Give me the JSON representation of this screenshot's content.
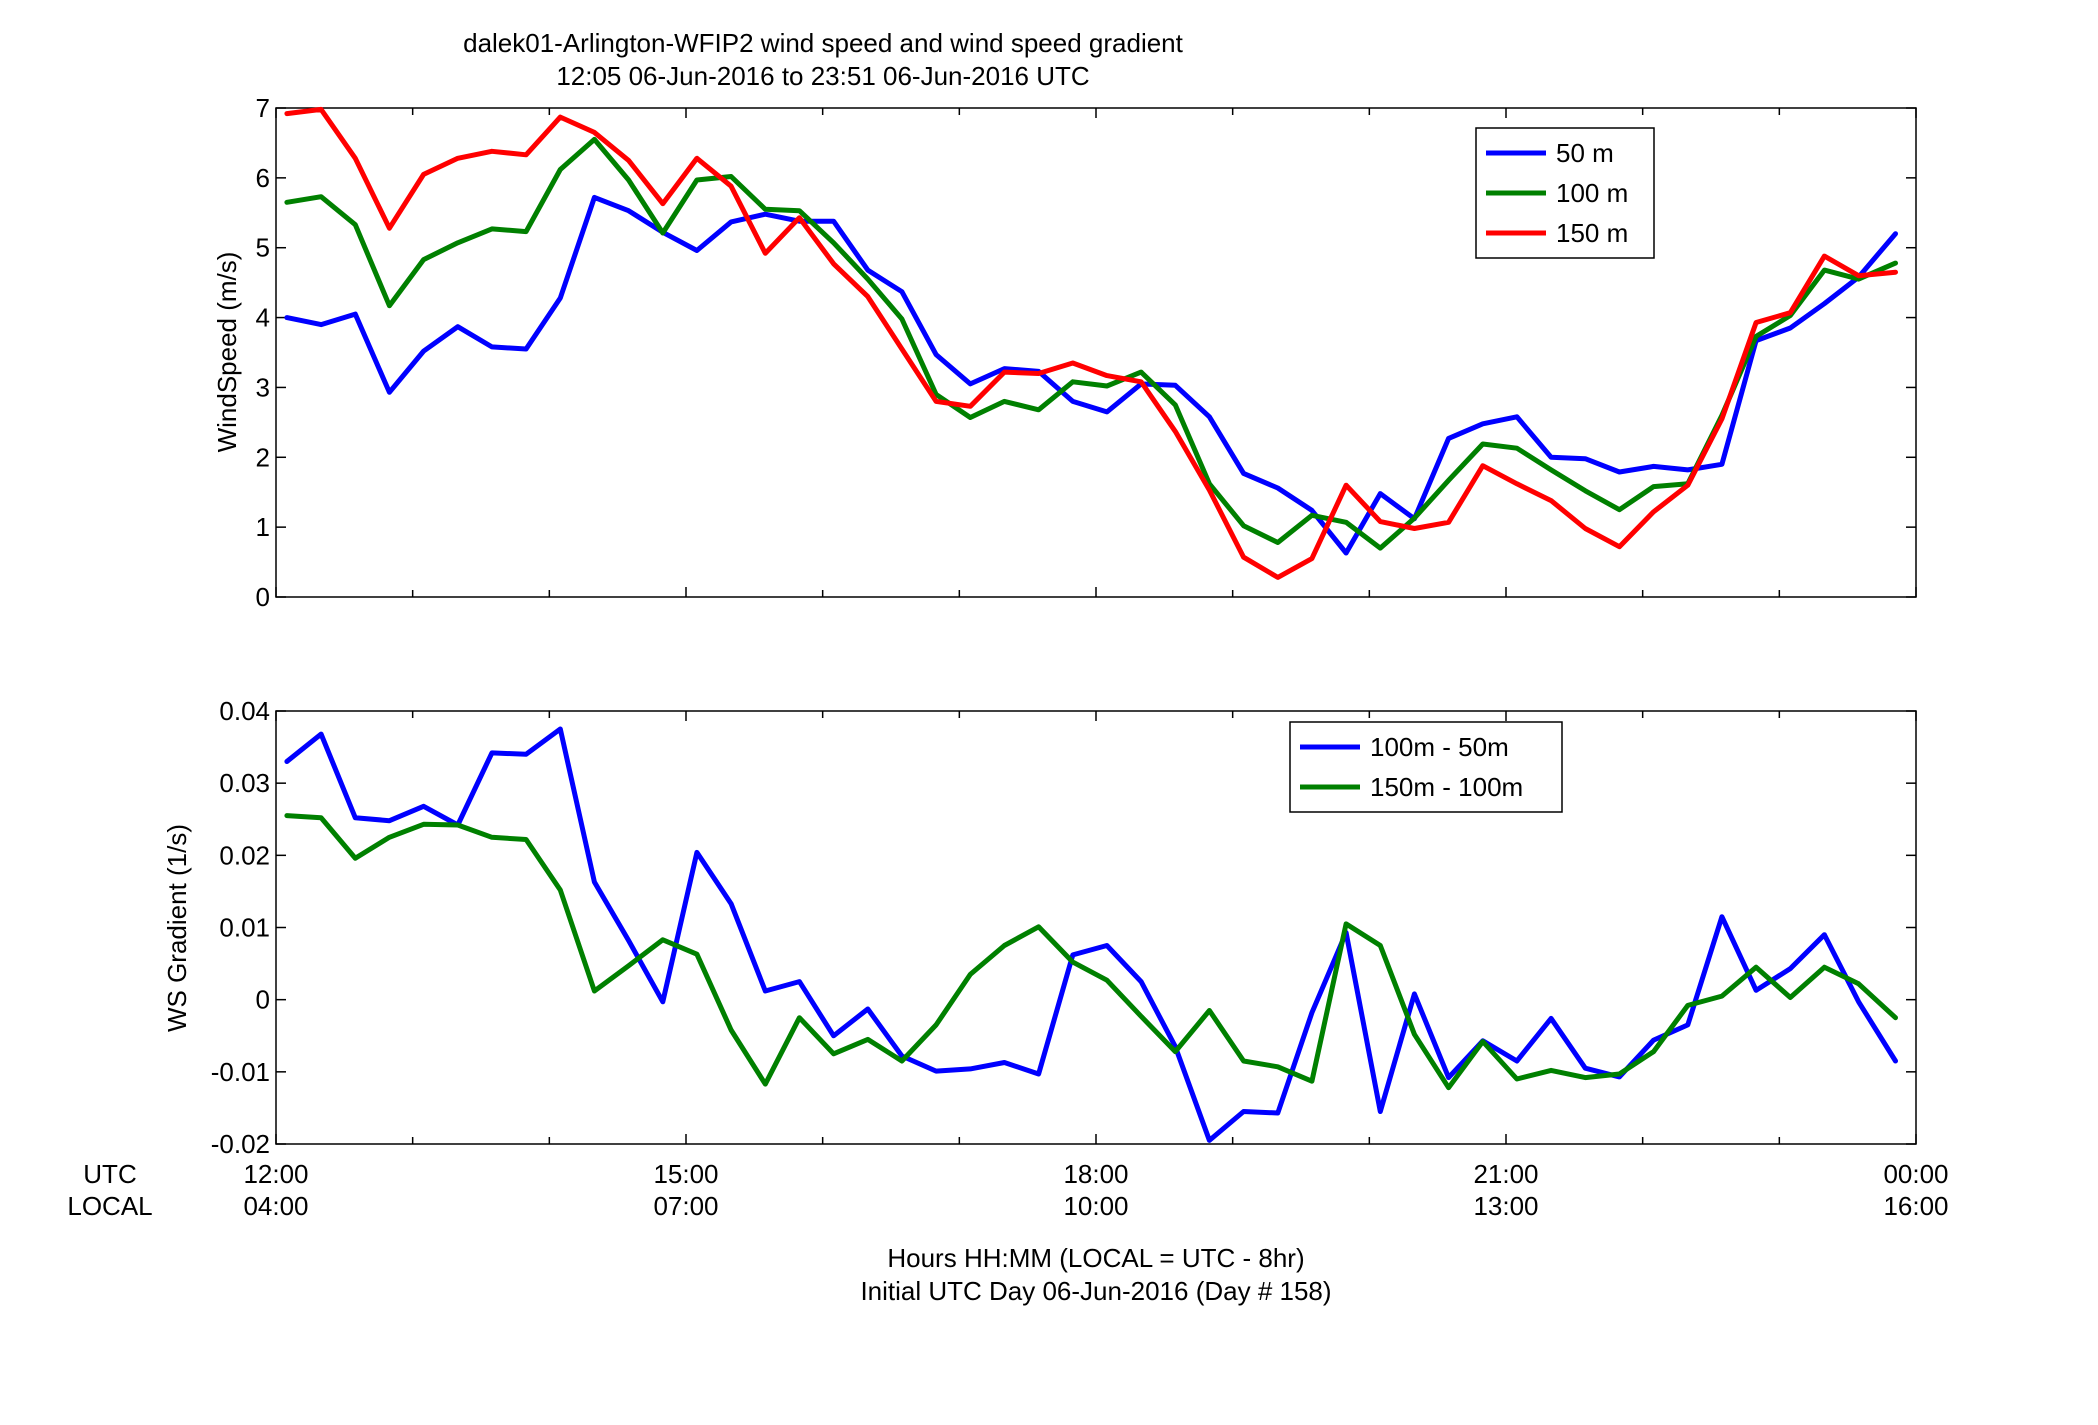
{
  "figure": {
    "title_line1": "dalek01-Arlington-WFIP2  wind speed and wind speed gradient",
    "title_line2": "12:05 06-Jun-2016 to 23:51 06-Jun-2016  UTC",
    "xlabel_line1": "Hours HH:MM  (LOCAL = UTC - 8hr)",
    "xlabel_line2": "Initial UTC Day 06-Jun-2016 (Day # 158)",
    "row_label_utc": "UTC",
    "row_label_local": "LOCAL",
    "x_ticks_utc": [
      "12:00",
      "15:00",
      "18:00",
      "21:00",
      "00:00"
    ],
    "x_ticks_local": [
      "04:00",
      "07:00",
      "10:00",
      "13:00",
      "16:00"
    ]
  },
  "chart_data": [
    {
      "type": "line",
      "ylabel": "WindSpeed (m/s)",
      "xlabel": "",
      "xlim": [
        12.0,
        24.0
      ],
      "ylim": [
        0,
        7
      ],
      "y_ticks": [
        0,
        1,
        2,
        3,
        4,
        5,
        6,
        7
      ],
      "grid": false,
      "legend_position": "top-right",
      "x": [
        12.08,
        12.33,
        12.58,
        12.83,
        13.08,
        13.33,
        13.58,
        13.83,
        14.08,
        14.33,
        14.58,
        14.83,
        15.08,
        15.33,
        15.58,
        15.83,
        16.08,
        16.33,
        16.58,
        16.83,
        17.08,
        17.33,
        17.58,
        17.83,
        18.08,
        18.33,
        18.58,
        18.83,
        19.08,
        19.33,
        19.58,
        19.83,
        20.08,
        20.33,
        20.58,
        20.83,
        21.08,
        21.33,
        21.58,
        21.83,
        22.08,
        22.33,
        22.58,
        22.83,
        23.08,
        23.33,
        23.58,
        23.85
      ],
      "series": [
        {
          "name": "50 m",
          "color": "#0000ff",
          "values": [
            4.0,
            3.9,
            4.05,
            2.93,
            3.52,
            3.87,
            3.58,
            3.55,
            4.28,
            5.72,
            5.53,
            5.22,
            4.96,
            5.37,
            5.48,
            5.38,
            5.38,
            4.68,
            4.37,
            3.47,
            3.05,
            3.27,
            3.23,
            2.8,
            2.65,
            3.05,
            3.03,
            2.58,
            1.77,
            1.56,
            1.24,
            0.63,
            1.48,
            1.12,
            2.27,
            2.48,
            2.58,
            2.0,
            1.98,
            1.79,
            1.87,
            1.82,
            1.9,
            3.67,
            3.85,
            4.2,
            4.58,
            5.2
          ]
        },
        {
          "name": "100 m",
          "color": "#008000",
          "values": [
            5.65,
            5.73,
            5.33,
            4.17,
            4.83,
            5.07,
            5.27,
            5.23,
            6.12,
            6.55,
            5.97,
            5.21,
            5.97,
            6.02,
            5.55,
            5.53,
            5.07,
            4.55,
            3.98,
            2.9,
            2.57,
            2.8,
            2.68,
            3.08,
            3.02,
            3.22,
            2.75,
            1.62,
            1.02,
            0.78,
            1.17,
            1.07,
            0.7,
            1.13,
            1.67,
            2.19,
            2.13,
            1.82,
            1.52,
            1.25,
            1.58,
            1.62,
            2.6,
            3.73,
            4.03,
            4.68,
            4.55,
            4.78
          ]
        },
        {
          "name": "150 m",
          "color": "#ff0000",
          "values": [
            6.92,
            6.98,
            6.28,
            5.28,
            6.05,
            6.28,
            6.38,
            6.33,
            6.87,
            6.65,
            6.25,
            5.63,
            6.28,
            5.88,
            4.92,
            5.43,
            4.77,
            4.3,
            3.55,
            2.8,
            2.73,
            3.22,
            3.2,
            3.35,
            3.17,
            3.08,
            2.37,
            1.53,
            0.57,
            0.28,
            0.55,
            1.6,
            1.08,
            0.98,
            1.07,
            1.88,
            1.62,
            1.38,
            0.98,
            0.72,
            1.22,
            1.6,
            2.55,
            3.93,
            4.07,
            4.88,
            4.6,
            4.65
          ]
        }
      ]
    },
    {
      "type": "line",
      "ylabel": "WS Gradient (1/s)",
      "xlabel": "",
      "xlim": [
        12.0,
        24.0
      ],
      "ylim": [
        -0.02,
        0.04
      ],
      "y_ticks": [
        -0.02,
        -0.01,
        0,
        0.01,
        0.02,
        0.03,
        0.04
      ],
      "y_tick_labels": [
        "-0.02",
        "-0.01",
        "0",
        "0.01",
        "0.02",
        "0.03",
        "0.04"
      ],
      "grid": false,
      "legend_position": "top-right",
      "x": [
        12.08,
        12.33,
        12.58,
        12.83,
        13.08,
        13.33,
        13.58,
        13.83,
        14.08,
        14.33,
        14.58,
        14.83,
        15.08,
        15.33,
        15.58,
        15.83,
        16.08,
        16.33,
        16.58,
        16.83,
        17.08,
        17.33,
        17.58,
        17.83,
        18.08,
        18.33,
        18.58,
        18.83,
        19.08,
        19.33,
        19.58,
        19.83,
        20.08,
        20.33,
        20.58,
        20.83,
        21.08,
        21.33,
        21.58,
        21.83,
        22.08,
        22.33,
        22.58,
        22.83,
        23.08,
        23.33,
        23.58,
        23.85
      ],
      "series": [
        {
          "name": "100m - 50m",
          "color": "#0000ff",
          "values": [
            0.033,
            0.0368,
            0.0252,
            0.0248,
            0.0268,
            0.0242,
            0.0342,
            0.034,
            0.0375,
            0.0163,
            0.0082,
            -0.0003,
            0.0204,
            0.0133,
            0.0012,
            0.0025,
            -0.005,
            -0.0013,
            -0.0078,
            -0.0099,
            -0.0096,
            -0.0087,
            -0.0103,
            0.0062,
            0.0075,
            0.0025,
            -0.0065,
            -0.0195,
            -0.0155,
            -0.0157,
            -0.0018,
            0.0093,
            -0.0155,
            0.0008,
            -0.0108,
            -0.0057,
            -0.0085,
            -0.0026,
            -0.0095,
            -0.0107,
            -0.0056,
            -0.0035,
            0.0115,
            0.0013,
            0.0043,
            0.009,
            -0.0003,
            -0.0085
          ]
        },
        {
          "name": "150m - 100m",
          "color": "#008000",
          "values": [
            0.0255,
            0.0252,
            0.0196,
            0.0225,
            0.0243,
            0.0242,
            0.0225,
            0.0222,
            0.0152,
            0.0012,
            0.0047,
            0.0083,
            0.0063,
            -0.0042,
            -0.0117,
            -0.0025,
            -0.0075,
            -0.0055,
            -0.0085,
            -0.0035,
            0.0035,
            0.0075,
            0.0101,
            0.0052,
            0.0027,
            -0.0023,
            -0.0072,
            -0.0015,
            -0.0085,
            -0.0093,
            -0.0113,
            0.0105,
            0.0075,
            -0.0048,
            -0.0122,
            -0.0058,
            -0.011,
            -0.0098,
            -0.0108,
            -0.0103,
            -0.0072,
            -0.0008,
            0.0005,
            0.0045,
            0.0003,
            0.0045,
            0.0022,
            -0.0025
          ]
        }
      ]
    }
  ]
}
